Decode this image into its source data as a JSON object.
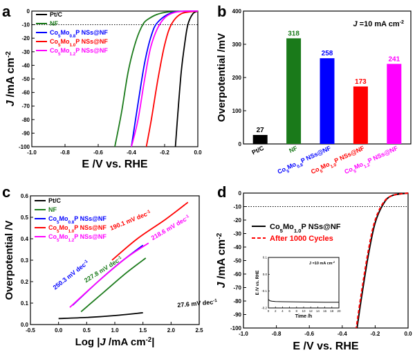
{
  "chart_data": [
    {
      "panel": "a",
      "type": "line",
      "xlabel": "E /V vs. RHE",
      "ylabel": "J /mA cm-2",
      "xlim": [
        -1.0,
        0.0
      ],
      "ylim": [
        -100,
        0
      ],
      "xticks": [
        "-1.0",
        "-0.8",
        "-0.6",
        "-0.4",
        "-0.2",
        "0.0"
      ],
      "yticks": [
        "0",
        "-10",
        "-20",
        "-30",
        "-40",
        "-50",
        "-60",
        "-70",
        "-80",
        "-90",
        "-100"
      ],
      "reference_line": -10,
      "series": [
        {
          "name": "Pt/C",
          "color": "#000000",
          "x": [
            0.0,
            -0.03,
            -0.06,
            -0.08,
            -0.1,
            -0.12,
            -0.135
          ],
          "y": [
            0,
            -2,
            -10,
            -25,
            -45,
            -75,
            -100
          ]
        },
        {
          "name": "NF",
          "color": "#1a7a1a",
          "x": [
            0.0,
            -0.2,
            -0.3,
            -0.34,
            -0.38,
            -0.42,
            -0.46,
            -0.5
          ],
          "y": [
            0,
            -1,
            -6,
            -12,
            -25,
            -45,
            -75,
            -100
          ]
        },
        {
          "name": "Co5Mo0.8P NSs@NF",
          "color": "#0000ff",
          "x": [
            0.0,
            -0.15,
            -0.24,
            -0.28,
            -0.32,
            -0.36,
            -0.4
          ],
          "y": [
            0,
            -1,
            -8,
            -18,
            -38,
            -68,
            -100
          ]
        },
        {
          "name": "Co5Mo1.0P NSs@NF",
          "color": "#ff0000",
          "x": [
            0.0,
            -0.1,
            -0.16,
            -0.2,
            -0.24,
            -0.28,
            -0.31
          ],
          "y": [
            0,
            -2,
            -10,
            -25,
            -50,
            -80,
            -100
          ]
        },
        {
          "name": "Co5Mo1.2P NSs@NF",
          "color": "#ff00ff",
          "x": [
            0.0,
            -0.14,
            -0.22,
            -0.28,
            -0.32,
            -0.36,
            -0.4
          ],
          "y": [
            0,
            -1,
            -8,
            -25,
            -50,
            -80,
            -100
          ]
        }
      ]
    },
    {
      "panel": "b",
      "type": "bar",
      "ylabel": "Overpotential /mV",
      "annotation": "J =10 mA cm-2",
      "ylim": [
        0,
        400
      ],
      "yticks": [
        "0",
        "100",
        "200",
        "300",
        "400"
      ],
      "categories": [
        "Pt/C",
        "NF",
        "Co5Mo0.8P NSs@NF",
        "Co5Mo1.0P NSs@NF",
        "Co5Mo1.2P NSs@NF"
      ],
      "values": [
        27,
        318,
        258,
        173,
        241
      ],
      "colors": [
        "#000000",
        "#1a7a1a",
        "#0000ff",
        "#ff0000",
        "#ff00ff"
      ]
    },
    {
      "panel": "c",
      "type": "line",
      "xlabel": "Log |J /mA cm-2|",
      "ylabel": "Overpotential /V",
      "xlim": [
        -0.5,
        2.5
      ],
      "ylim": [
        0.0,
        0.6
      ],
      "xticks": [
        "-0.5",
        "0.0",
        "0.5",
        "1.0",
        "1.5",
        "2.0",
        "2.5"
      ],
      "yticks": [
        "0.0",
        "0.1",
        "0.2",
        "0.3",
        "0.4",
        "0.5",
        "0.6"
      ],
      "series": [
        {
          "name": "Pt/C",
          "color": "#000000",
          "x": [
            0.0,
            0.5,
            1.0,
            1.5
          ],
          "y": [
            0.028,
            0.033,
            0.042,
            0.055
          ],
          "slope_label": "27.6 mV dec-1"
        },
        {
          "name": "NF",
          "color": "#1a7a1a",
          "x": [
            0.4,
            0.8,
            1.2,
            1.55
          ],
          "y": [
            0.06,
            0.15,
            0.24,
            0.31
          ],
          "slope_label": "227.8 mV dec-1"
        },
        {
          "name": "Co5Mo0.8P NSs@NF",
          "color": "#0000ff",
          "x": [
            0.25,
            0.7,
            1.1,
            1.5
          ],
          "y": [
            0.09,
            0.2,
            0.29,
            0.37
          ],
          "slope_label": "250.3 mV dec-1"
        },
        {
          "name": "Co5Mo1.0P NSs@NF",
          "color": "#ff0000",
          "x": [
            0.95,
            1.4,
            1.9,
            2.3
          ],
          "y": [
            0.3,
            0.4,
            0.49,
            0.57
          ],
          "slope_label": "190.1 mV dec-1"
        },
        {
          "name": "Co5Mo1.2P NSs@NF",
          "color": "#ff00ff",
          "x": [
            0.2,
            0.7,
            1.2,
            1.6
          ],
          "y": [
            0.08,
            0.2,
            0.31,
            0.38
          ],
          "slope_label": "218.6 mV dec-1"
        }
      ]
    },
    {
      "panel": "d",
      "type": "line",
      "xlabel": "E /V vs. RHE",
      "ylabel": "J /mA cm-2",
      "xlim": [
        -1.0,
        0.0
      ],
      "ylim": [
        -100,
        0
      ],
      "xticks": [
        "-1.0",
        "-0.8",
        "-0.6",
        "-0.4",
        "-0.2",
        "0.0"
      ],
      "yticks": [
        "0",
        "-10",
        "-20",
        "-30",
        "-40",
        "-50",
        "-60",
        "-70",
        "-80",
        "-90",
        "-100"
      ],
      "reference_line": -10,
      "series": [
        {
          "name": "Co5Mo1.0P NSs@NF",
          "color": "#000000",
          "style": "solid",
          "x": [
            0.0,
            -0.1,
            -0.15,
            -0.2,
            -0.24,
            -0.28,
            -0.31
          ],
          "y": [
            0,
            -2,
            -8,
            -22,
            -45,
            -75,
            -100
          ]
        },
        {
          "name": "After 1000 Cycles",
          "color": "#ff0000",
          "style": "dashed",
          "x": [
            0.0,
            -0.1,
            -0.155,
            -0.205,
            -0.245,
            -0.285,
            -0.315
          ],
          "y": [
            0,
            -2,
            -8,
            -22,
            -45,
            -75,
            -100
          ]
        }
      ],
      "inset": {
        "xlabel": "Time /h",
        "ylabel": "E /V vs. RHE",
        "annotation": "J =10 mA cm-2",
        "xlim": [
          0,
          20
        ],
        "ylim": [
          -0.2,
          0.1
        ],
        "xticks": [
          "0",
          "2",
          "4",
          "6",
          "8",
          "10",
          "12",
          "14",
          "16",
          "18",
          "20"
        ],
        "yticks": [
          "0.1",
          "0.0",
          "-0.1",
          "-0.2"
        ],
        "x": [
          0,
          0.5,
          1,
          2,
          4,
          8,
          12,
          16,
          20
        ],
        "y": [
          -0.15,
          -0.158,
          -0.16,
          -0.162,
          -0.163,
          -0.164,
          -0.165,
          -0.166,
          -0.166
        ]
      }
    }
  ],
  "panels": {
    "a": {
      "letter": "a"
    },
    "b": {
      "letter": "b"
    },
    "c": {
      "letter": "c"
    },
    "d": {
      "letter": "d"
    }
  },
  "text": {
    "a_ylabel_main": "J /mA cm",
    "a_ylabel_sup": "-2",
    "a_xlabel": "E /V vs. RHE",
    "b_ylabel": "Overpotential /mV",
    "b_annot_j": "J",
    "b_annot_rest": " =10 mA cm",
    "b_annot_sup": "-2",
    "c_ylabel": "Overpotential /V",
    "c_xlabel_pre": "Log |",
    "c_xlabel_j": "J",
    "c_xlabel_mid": " /mA cm",
    "c_xlabel_sup": "-2",
    "c_xlabel_end": "|",
    "d_ylabel_main": "J /mA cm",
    "d_ylabel_sup": "-2",
    "d_xlabel": "E /V vs. RHE",
    "inset_annot": "J =10 mA cm",
    "inset_annot_sup": "-2",
    "inset_xlabel": "Time /h",
    "inset_ylabel": "E /V vs. RHE"
  },
  "legend": {
    "a": [
      {
        "label_html": "Pt/C",
        "color": "#000000"
      },
      {
        "label_html": "NF",
        "color": "#1a7a1a"
      },
      {
        "label_html": "Co5Mo0.8P NSs@NF",
        "color": "#0000ff"
      },
      {
        "label_html": "Co5Mo1.0P NSs@NF",
        "color": "#ff0000"
      },
      {
        "label_html": "Co5Mo1.2P NSs@NF",
        "color": "#ff00ff"
      }
    ],
    "d": [
      {
        "label_html": "Co5Mo1.0P NSs@NF",
        "color": "#000000",
        "style": "solid"
      },
      {
        "label_html": "After 1000 Cycles",
        "color": "#ff0000",
        "style": "dashed"
      }
    ]
  }
}
